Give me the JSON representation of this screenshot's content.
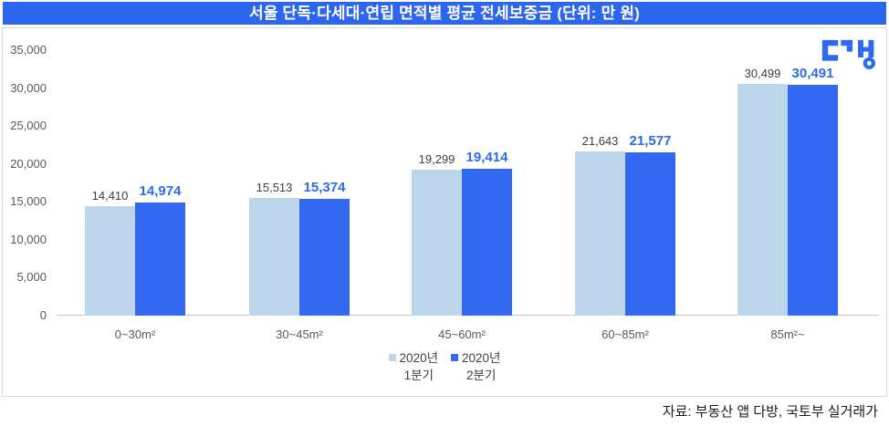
{
  "banner": {
    "title": "서울 단독·다세대·연립 면적별 평균 전세보증금 (단위: 만 원)"
  },
  "logo": {
    "name": "다방"
  },
  "source": "자료: 부동산 앱 다방, 국토부 실거래가",
  "colors": {
    "banner_bg": "#2d66ee",
    "banner_text": "#ffffff",
    "series1": "#bdd6ec",
    "series2": "#3369f1",
    "label1_text": "#404040",
    "label2_text": "#2e6ae9",
    "axis_text": "#595959",
    "box_border": "#d9d9d9",
    "axis_line": "#c9c9c9",
    "logo_blue": "#2e6ae9"
  },
  "legend": [
    {
      "line1": "2020년",
      "line2": "1분기",
      "color": "#bdd6ec"
    },
    {
      "line1": "2020년",
      "line2": "2분기",
      "color": "#3369f1"
    }
  ],
  "chart_data": {
    "type": "bar",
    "title": "서울 단독·다세대·연립 면적별 평균 전세보증금",
    "unit_label": "(단위: 만 원)",
    "categories": [
      "0~30m²",
      "30~45m²",
      "45~60m²",
      "60~85m²",
      "85m²~"
    ],
    "series": [
      {
        "name": "2020년 1분기",
        "color": "#bdd6ec",
        "values": [
          14410,
          15513,
          19299,
          21643,
          30499
        ]
      },
      {
        "name": "2020년 2분기",
        "color": "#3369f1",
        "values": [
          14974,
          15374,
          19414,
          21577,
          30491
        ]
      }
    ],
    "ylim": [
      0,
      35000
    ],
    "ytick_interval": 5000,
    "yticks": [
      "0",
      "5,000",
      "10,000",
      "15,000",
      "20,000",
      "25,000",
      "30,000",
      "35,000"
    ],
    "grid": false,
    "data_labels": true,
    "legend_position": "bottom"
  }
}
